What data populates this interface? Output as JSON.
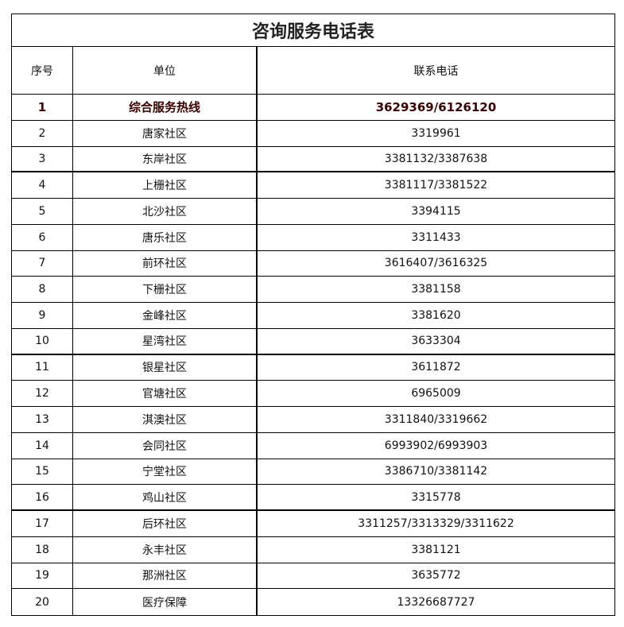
{
  "title": "咨询服务电话表",
  "headers": {
    "index": "序号",
    "unit": "单位",
    "phone": "联系电话"
  },
  "highlight_color": "#3a0000",
  "rows": [
    {
      "index": "1",
      "unit": "综合服务热线",
      "phone": "3629369/6126120"
    },
    {
      "index": "2",
      "unit": "唐家社区",
      "phone": "3319961"
    },
    {
      "index": "3",
      "unit": "东岸社区",
      "phone": "3381132/3387638"
    },
    {
      "index": "4",
      "unit": "上栅社区",
      "phone": "3381117/3381522"
    },
    {
      "index": "5",
      "unit": "北沙社区",
      "phone": "3394115"
    },
    {
      "index": "6",
      "unit": "唐乐社区",
      "phone": "3311433"
    },
    {
      "index": "7",
      "unit": "前环社区",
      "phone": "3616407/3616325"
    },
    {
      "index": "8",
      "unit": "下栅社区",
      "phone": "3381158"
    },
    {
      "index": "9",
      "unit": "金峰社区",
      "phone": "3381620"
    },
    {
      "index": "10",
      "unit": "星湾社区",
      "phone": "3633304"
    },
    {
      "index": "11",
      "unit": "银星社区",
      "phone": "3611872"
    },
    {
      "index": "12",
      "unit": "官塘社区",
      "phone": "6965009"
    },
    {
      "index": "13",
      "unit": "淇澳社区",
      "phone": "3311840/3319662"
    },
    {
      "index": "14",
      "unit": "会同社区",
      "phone": "6993902/6993903"
    },
    {
      "index": "15",
      "unit": "宁堂社区",
      "phone": "3386710/3381142"
    },
    {
      "index": "16",
      "unit": "鸡山社区",
      "phone": "3315778"
    },
    {
      "index": "17",
      "unit": "后环社区",
      "phone": "3311257/3313329/3311622"
    },
    {
      "index": "18",
      "unit": "永丰社区",
      "phone": "3381121"
    },
    {
      "index": "19",
      "unit": "那洲社区",
      "phone": "3635772"
    },
    {
      "index": "20",
      "unit": "医疗保障",
      "phone": "13326687727"
    }
  ]
}
